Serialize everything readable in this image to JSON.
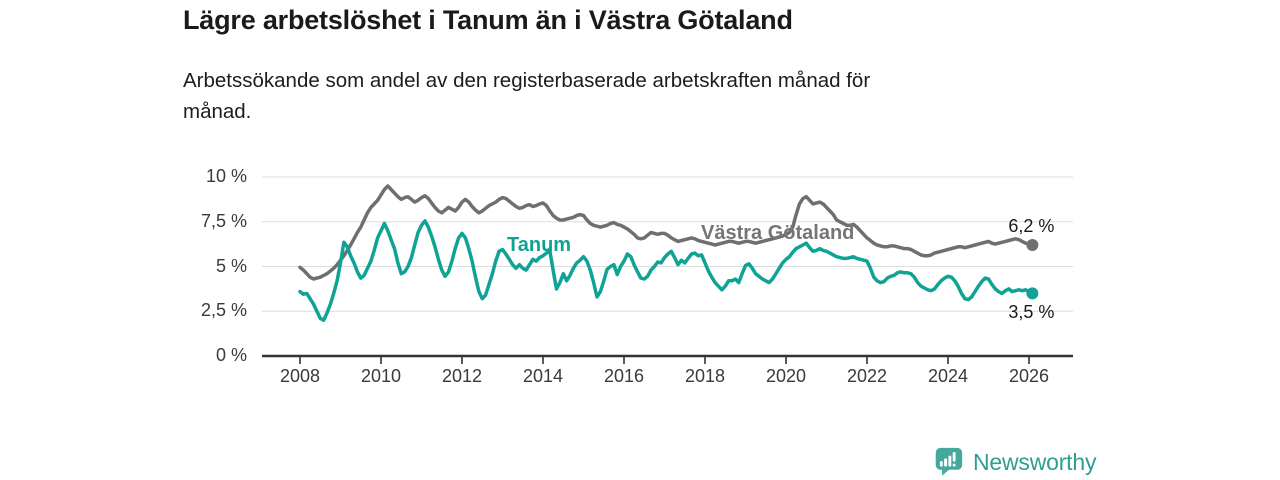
{
  "header": {
    "title": "Lägre arbetslöshet i Tanum än i Västra Götaland",
    "subtitle": "Arbetssökande som andel av den registerbaserade arbetskraften månad för månad."
  },
  "chart_data": {
    "type": "line",
    "title": "Lägre arbetslöshet i Tanum än i Västra Götaland",
    "xlabel": "",
    "ylabel": "",
    "ylim": [
      0,
      10
    ],
    "xlim": [
      2007,
      2027.1
    ],
    "grid": true,
    "legend_position": "inline-labels",
    "x_unit": "year (monthly resolution)",
    "y_unit": "percent",
    "x_ticks": [
      {
        "label": "2008",
        "value": 2008
      },
      {
        "label": "2010",
        "value": 2010
      },
      {
        "label": "2012",
        "value": 2012
      },
      {
        "label": "2014",
        "value": 2014
      },
      {
        "label": "2016",
        "value": 2016
      },
      {
        "label": "2018",
        "value": 2018
      },
      {
        "label": "2020",
        "value": 2020
      },
      {
        "label": "2022",
        "value": 2022
      },
      {
        "label": "2024",
        "value": 2024
      },
      {
        "label": "2026",
        "value": 2026
      }
    ],
    "y_ticks": [
      {
        "label": "0 %",
        "value": 0
      },
      {
        "label": "2,5 %",
        "value": 2.5
      },
      {
        "label": "5 %",
        "value": 5
      },
      {
        "label": "7,5 %",
        "value": 7.5
      },
      {
        "label": "10 %",
        "value": 10
      }
    ],
    "series": [
      {
        "name": "Västra Götaland",
        "color": "#6f6f6f",
        "end_label": "6,2 %",
        "end_label_side": "above",
        "x_start": 2008.0,
        "points_per_year": 12,
        "values": [
          4.95,
          4.8,
          4.6,
          4.4,
          4.3,
          4.35,
          4.4,
          4.5,
          4.6,
          4.75,
          4.9,
          5.1,
          5.35,
          5.6,
          5.9,
          6.2,
          6.55,
          6.9,
          7.2,
          7.6,
          8.0,
          8.3,
          8.5,
          8.7,
          9.0,
          9.3,
          9.5,
          9.3,
          9.1,
          8.9,
          8.75,
          8.85,
          8.9,
          8.75,
          8.6,
          8.7,
          8.85,
          8.95,
          8.8,
          8.55,
          8.3,
          8.1,
          8.0,
          8.15,
          8.3,
          8.2,
          8.1,
          8.3,
          8.6,
          8.75,
          8.6,
          8.35,
          8.15,
          8.0,
          8.1,
          8.25,
          8.4,
          8.5,
          8.6,
          8.75,
          8.85,
          8.8,
          8.65,
          8.5,
          8.35,
          8.25,
          8.3,
          8.4,
          8.45,
          8.35,
          8.4,
          8.5,
          8.55,
          8.4,
          8.1,
          7.85,
          7.7,
          7.6,
          7.6,
          7.65,
          7.7,
          7.75,
          7.85,
          7.9,
          7.85,
          7.6,
          7.4,
          7.3,
          7.25,
          7.2,
          7.25,
          7.3,
          7.4,
          7.45,
          7.35,
          7.3,
          7.2,
          7.1,
          6.95,
          6.8,
          6.6,
          6.55,
          6.6,
          6.75,
          6.9,
          6.85,
          6.8,
          6.85,
          6.85,
          6.75,
          6.6,
          6.5,
          6.4,
          6.45,
          6.5,
          6.55,
          6.6,
          6.55,
          6.45,
          6.4,
          6.35,
          6.3,
          6.25,
          6.2,
          6.25,
          6.3,
          6.35,
          6.4,
          6.4,
          6.35,
          6.3,
          6.35,
          6.4,
          6.4,
          6.35,
          6.3,
          6.35,
          6.4,
          6.45,
          6.5,
          6.55,
          6.6,
          6.65,
          6.7,
          6.8,
          6.9,
          7.2,
          7.9,
          8.5,
          8.8,
          8.9,
          8.7,
          8.5,
          8.55,
          8.6,
          8.5,
          8.3,
          8.1,
          7.9,
          7.6,
          7.5,
          7.4,
          7.3,
          7.3,
          7.35,
          7.2,
          7.0,
          6.8,
          6.6,
          6.45,
          6.3,
          6.2,
          6.15,
          6.1,
          6.1,
          6.15,
          6.15,
          6.1,
          6.05,
          6.0,
          6.0,
          5.95,
          5.85,
          5.75,
          5.65,
          5.6,
          5.6,
          5.65,
          5.75,
          5.8,
          5.85,
          5.9,
          5.95,
          6.0,
          6.05,
          6.1,
          6.1,
          6.05,
          6.1,
          6.15,
          6.2,
          6.25,
          6.3,
          6.35,
          6.4,
          6.3,
          6.25,
          6.3,
          6.35,
          6.4,
          6.45,
          6.5,
          6.55,
          6.5,
          6.4,
          6.3,
          6.25,
          6.2
        ]
      },
      {
        "name": "Tanum",
        "color": "#0fa396",
        "end_label": "3,5 %",
        "end_label_side": "below",
        "x_start": 2008.0,
        "points_per_year": 12,
        "values": [
          3.6,
          3.45,
          3.5,
          3.2,
          2.9,
          2.5,
          2.1,
          2.0,
          2.4,
          2.9,
          3.5,
          4.2,
          5.2,
          6.35,
          6.1,
          5.6,
          5.2,
          4.7,
          4.35,
          4.5,
          4.9,
          5.3,
          5.9,
          6.6,
          7.0,
          7.4,
          7.0,
          6.5,
          6.0,
          5.2,
          4.6,
          4.7,
          5.0,
          5.5,
          6.2,
          6.9,
          7.3,
          7.55,
          7.2,
          6.7,
          6.1,
          5.4,
          4.8,
          4.45,
          4.7,
          5.3,
          6.0,
          6.6,
          6.85,
          6.6,
          6.0,
          5.3,
          4.4,
          3.6,
          3.2,
          3.4,
          4.0,
          4.6,
          5.3,
          5.85,
          5.95,
          5.7,
          5.4,
          5.1,
          4.9,
          5.1,
          4.9,
          4.8,
          5.1,
          5.4,
          5.3,
          5.5,
          5.6,
          5.75,
          5.9,
          4.8,
          3.75,
          4.1,
          4.6,
          4.2,
          4.5,
          4.9,
          5.2,
          5.35,
          5.55,
          5.3,
          4.8,
          4.1,
          3.3,
          3.6,
          4.2,
          4.85,
          5.0,
          5.1,
          4.55,
          5.0,
          5.3,
          5.7,
          5.55,
          5.1,
          4.7,
          4.35,
          4.3,
          4.45,
          4.8,
          5.0,
          5.25,
          5.2,
          5.5,
          5.7,
          5.85,
          5.5,
          5.1,
          5.35,
          5.2,
          5.45,
          5.7,
          5.75,
          5.6,
          5.65,
          5.2,
          4.75,
          4.4,
          4.1,
          3.9,
          3.7,
          3.9,
          4.2,
          4.2,
          4.3,
          4.1,
          4.6,
          5.05,
          5.15,
          4.9,
          4.6,
          4.45,
          4.3,
          4.2,
          4.1,
          4.3,
          4.6,
          4.9,
          5.2,
          5.4,
          5.55,
          5.8,
          6.0,
          6.1,
          6.2,
          6.3,
          6.05,
          5.85,
          5.9,
          6.0,
          5.9,
          5.85,
          5.75,
          5.65,
          5.55,
          5.5,
          5.45,
          5.45,
          5.5,
          5.55,
          5.45,
          5.4,
          5.35,
          5.3,
          4.9,
          4.4,
          4.2,
          4.1,
          4.15,
          4.35,
          4.45,
          4.5,
          4.65,
          4.7,
          4.65,
          4.65,
          4.6,
          4.4,
          4.1,
          3.9,
          3.8,
          3.7,
          3.65,
          3.75,
          4.0,
          4.2,
          4.35,
          4.45,
          4.4,
          4.2,
          3.9,
          3.5,
          3.2,
          3.15,
          3.3,
          3.6,
          3.9,
          4.15,
          4.35,
          4.3,
          4.0,
          3.75,
          3.6,
          3.5,
          3.65,
          3.75,
          3.6,
          3.65,
          3.7,
          3.65,
          3.7,
          3.6,
          3.5
        ]
      }
    ],
    "style": {
      "grid_color": "#dcdcdc",
      "axis_color": "#333333",
      "line_width": 3.5,
      "end_dot_radius": 6
    }
  },
  "footer": {
    "brand": "Newsworthy"
  }
}
